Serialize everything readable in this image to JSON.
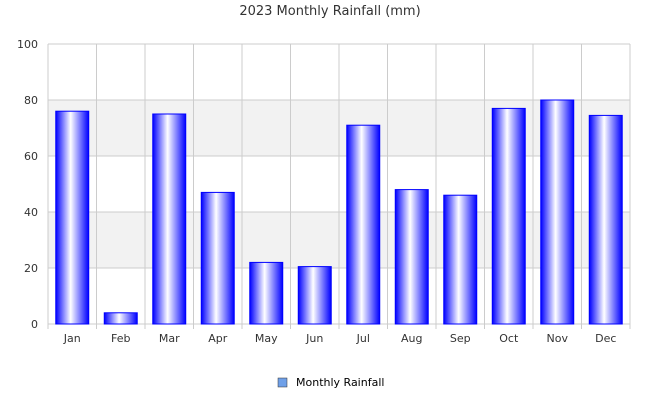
{
  "chart_data": {
    "type": "bar",
    "title": "2023 Monthly Rainfall (mm)",
    "xlabel": "",
    "ylabel": "",
    "categories": [
      "Jan",
      "Feb",
      "Mar",
      "Apr",
      "May",
      "Jun",
      "Jul",
      "Aug",
      "Sep",
      "Oct",
      "Nov",
      "Dec"
    ],
    "series": [
      {
        "name": "Monthly Rainfall",
        "values": [
          76,
          4,
          75,
          47,
          22,
          20.5,
          71,
          48,
          46,
          77,
          80,
          74.5
        ]
      }
    ],
    "ylim": [
      0,
      100
    ],
    "yticks": [
      0,
      20,
      40,
      60,
      80,
      100
    ],
    "grid": true,
    "legend_position": "bottom-center",
    "colors": {
      "bar_edge": "#0000ff",
      "bar_center": "#ffffff",
      "legend_swatch": "#6fa0e8",
      "band_fill": "#f2f2f2",
      "grid_line": "#cccccc",
      "text": "#333333"
    }
  }
}
